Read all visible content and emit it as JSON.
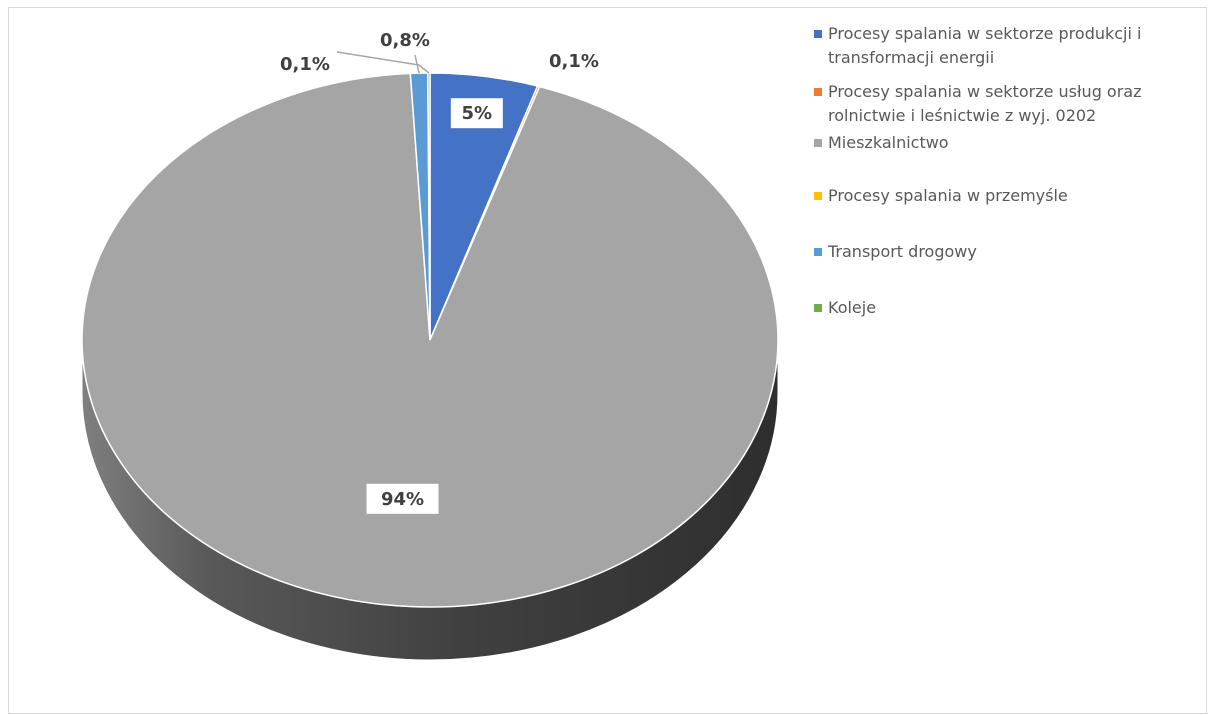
{
  "chart_data": {
    "type": "pie",
    "title": "",
    "legend_position": "right",
    "categories": [
      "Procesy spalania w sektorze produkcji i transformacji energii",
      "Procesy spalania w sektorze usług oraz rolnictwie i leśnictwie z wyj. 0202",
      "Mieszkalnictwo",
      "Procesy spalania w przemyśle",
      "Transport drogowy",
      "Koleje"
    ],
    "values": [
      5,
      0.1,
      94,
      0,
      0.8,
      0.1
    ],
    "data_labels": [
      "5%",
      "0,1%",
      "94%",
      "",
      "0,8%",
      "0,1%"
    ],
    "colors": [
      "#4472c4",
      "#ed7d31",
      "#a5a5a5",
      "#ffc000",
      "#5b9bd5",
      "#70ad47"
    ]
  }
}
